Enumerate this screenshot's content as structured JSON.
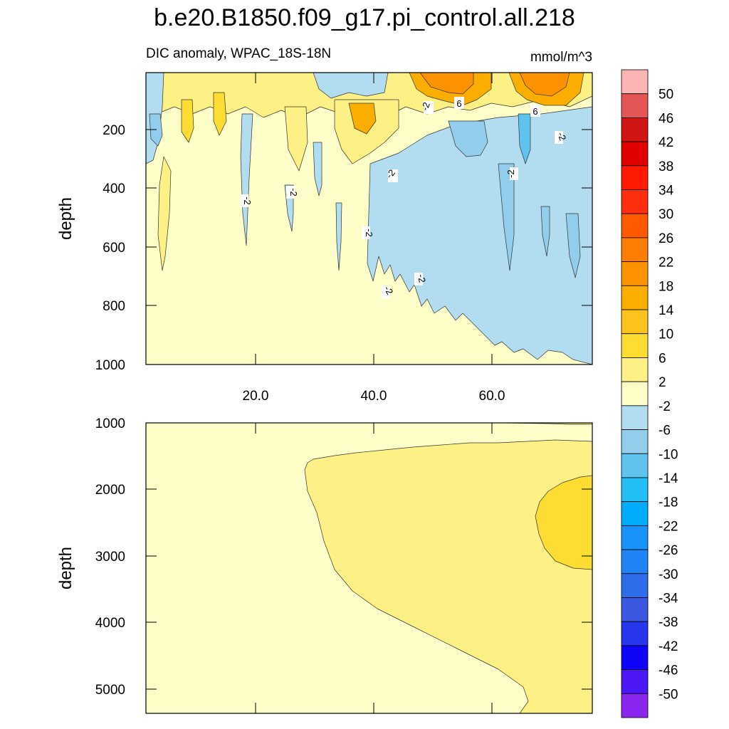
{
  "chart_data": [
    {
      "type": "contour",
      "title": "b.e20.B1850.f09_g17.pi_control.all.218",
      "left_subtitle": "DIC anomaly, WPAC_18S-18N",
      "right_subtitle": "mmol/m^3",
      "xlabel": "",
      "ylabel": "depth",
      "xlim": [
        1,
        76
      ],
      "ylim": [
        1000,
        0
      ],
      "x_tick_labels": [
        "20.0",
        "40.0",
        "60.0"
      ],
      "y_tick_labels": [
        "200",
        "400",
        "600",
        "800",
        "1000"
      ],
      "contour_line_labels": [
        "-2",
        "-2",
        "-2",
        "-2",
        "-2",
        "-2",
        "-2",
        "-2",
        "-2",
        "-2",
        "6",
        "6"
      ],
      "regions": [
        {
          "x": 20,
          "depth": 700,
          "value": 0,
          "note": "weak anomaly background"
        },
        {
          "x": 60,
          "depth": 500,
          "value": -4,
          "note": "negative anomaly, upper east"
        },
        {
          "x": 55,
          "depth": 40,
          "value": 20,
          "note": "positive maximum near surface"
        },
        {
          "x": 70,
          "depth": 40,
          "value": 18,
          "note": "positive maximum near surface"
        },
        {
          "x": 39,
          "depth": 160,
          "value": 16,
          "note": "subsurface positive patch"
        },
        {
          "x": 66,
          "depth": 200,
          "value": -12,
          "note": "subsurface negative core"
        }
      ]
    },
    {
      "type": "contour",
      "xlabel": "",
      "ylabel": "depth",
      "xlim": [
        1,
        76
      ],
      "ylim": [
        5350,
        1000
      ],
      "y_tick_labels": [
        "1000",
        "2000",
        "3000",
        "4000",
        "5000"
      ],
      "regions": [
        {
          "x": 15,
          "depth": 4000,
          "value": 0,
          "note": "weak anomaly"
        },
        {
          "x": 60,
          "depth": 3000,
          "value": 4,
          "note": "weak positive anomaly"
        },
        {
          "x": 73,
          "depth": 2500,
          "value": 7,
          "note": "positive core, east side"
        }
      ]
    }
  ],
  "colorbar": {
    "labels": [
      "50",
      "46",
      "42",
      "38",
      "34",
      "30",
      "26",
      "22",
      "18",
      "14",
      "10",
      "6",
      "2",
      "-2",
      "-6",
      "-10",
      "-14",
      "-18",
      "-22",
      "-26",
      "-30",
      "-34",
      "-38",
      "-42",
      "-46",
      "-50"
    ],
    "colors": [
      "#fcb4b4",
      "#e45555",
      "#d11414",
      "#e00000",
      "#ff1a00",
      "#ff2e0c",
      "#ff5a00",
      "#fd7d00",
      "#fd9200",
      "#fcae00",
      "#fbc31c",
      "#fddd32",
      "#fdf084",
      "#fefec8",
      "#b2dcf0",
      "#92cdec",
      "#5fc3ef",
      "#22bff6",
      "#00adfc",
      "#1694f9",
      "#1e84f5",
      "#2e6de9",
      "#3c58e0",
      "#2735ec",
      "#1004f8",
      "#4b17f5",
      "#8b26ef"
    ]
  }
}
